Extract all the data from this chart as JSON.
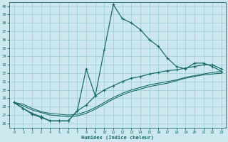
{
  "title": "",
  "xlabel": "Humidex (Indice chaleur)",
  "bg_color": "#cce8ee",
  "grid_color": "#99ccd5",
  "line_color": "#1a6b6b",
  "xlim": [
    -0.5,
    23.5
  ],
  "ylim": [
    25.5,
    40.5
  ],
  "xticks": [
    0,
    1,
    2,
    3,
    4,
    5,
    6,
    7,
    8,
    9,
    10,
    11,
    12,
    13,
    14,
    15,
    16,
    17,
    18,
    19,
    20,
    21,
    22,
    23
  ],
  "yticks": [
    26,
    27,
    28,
    29,
    30,
    31,
    32,
    33,
    34,
    35,
    36,
    37,
    38,
    39,
    40
  ],
  "line1_x": [
    0,
    1,
    2,
    3,
    4,
    5,
    6,
    7,
    8,
    9,
    10,
    11,
    12,
    13,
    14,
    15,
    16,
    17,
    18,
    19,
    20,
    21,
    22,
    23
  ],
  "line1_y": [
    28.5,
    27.8,
    27.2,
    26.8,
    26.3,
    26.3,
    26.3,
    27.5,
    32.5,
    29.3,
    34.8,
    40.2,
    38.5,
    38.0,
    37.2,
    36.0,
    35.2,
    33.8,
    32.8,
    32.5,
    33.2,
    33.2,
    32.8,
    32.2
  ],
  "line2_x": [
    0,
    1,
    2,
    3,
    4,
    5,
    6,
    7,
    8,
    9,
    10,
    11,
    12,
    13,
    14,
    15,
    16,
    17,
    18,
    19,
    20,
    21,
    22,
    23
  ],
  "line2_y": [
    28.5,
    27.8,
    27.1,
    26.7,
    26.3,
    26.3,
    26.3,
    27.5,
    28.2,
    29.3,
    30.0,
    30.5,
    31.0,
    31.4,
    31.6,
    31.9,
    32.1,
    32.3,
    32.4,
    32.6,
    32.8,
    33.0,
    33.0,
    32.5
  ],
  "line3_x": [
    0,
    1,
    2,
    3,
    4,
    5,
    6,
    7,
    8,
    9,
    10,
    11,
    12,
    13,
    14,
    15,
    16,
    17,
    18,
    19,
    20,
    21,
    22,
    23
  ],
  "line3_y": [
    28.5,
    28.1,
    27.6,
    27.3,
    27.0,
    26.9,
    26.8,
    26.9,
    27.2,
    27.7,
    28.3,
    28.9,
    29.4,
    29.8,
    30.1,
    30.4,
    30.6,
    30.8,
    31.1,
    31.4,
    31.6,
    31.8,
    31.9,
    32.0
  ],
  "line4_x": [
    0,
    1,
    2,
    3,
    4,
    5,
    6,
    7,
    8,
    9,
    10,
    11,
    12,
    13,
    14,
    15,
    16,
    17,
    18,
    19,
    20,
    21,
    22,
    23
  ],
  "line4_y": [
    28.5,
    28.3,
    27.8,
    27.4,
    27.2,
    27.1,
    27.0,
    27.1,
    27.4,
    27.9,
    28.5,
    29.1,
    29.6,
    30.0,
    30.3,
    30.6,
    30.8,
    31.0,
    31.2,
    31.5,
    31.7,
    31.9,
    32.1,
    32.2
  ]
}
